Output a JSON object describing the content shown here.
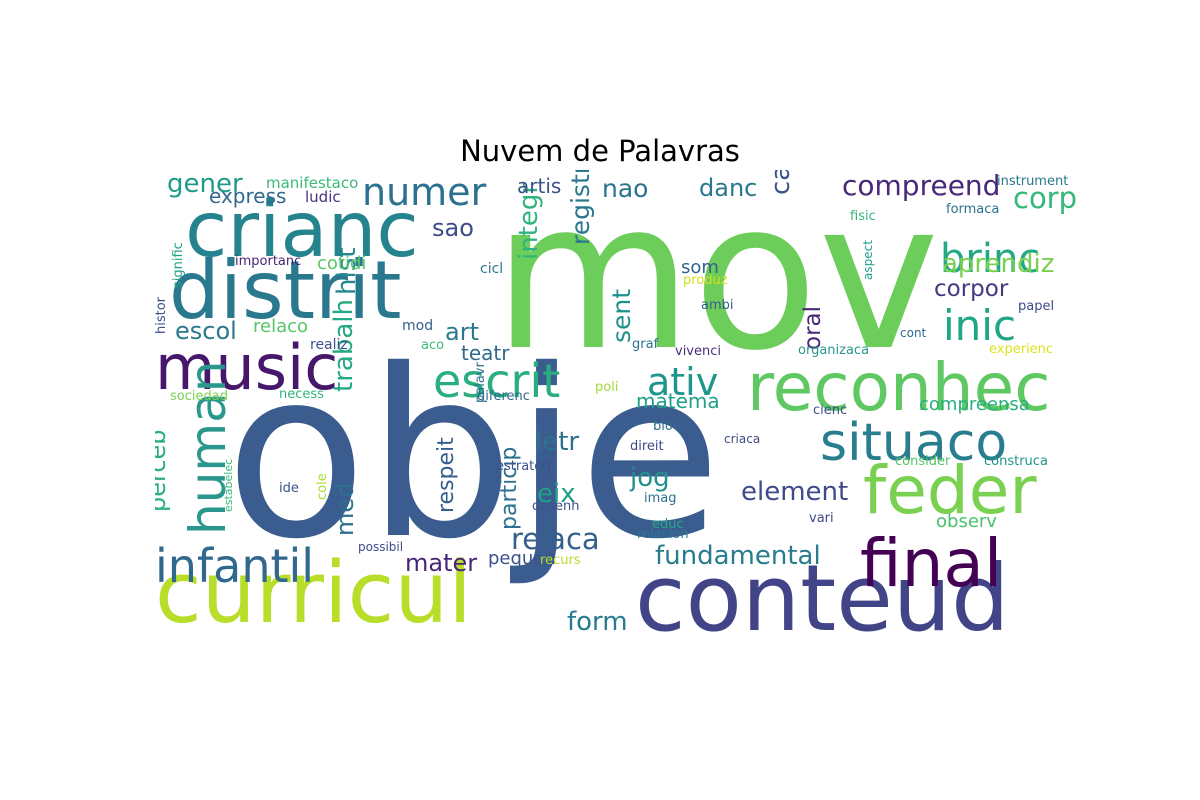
{
  "title": "Nuvem de Palavras",
  "words": [
    {
      "t": "obje",
      "c": "#3b5c8f"
    },
    {
      "t": "mov",
      "c": "#6ccd5a"
    },
    {
      "t": "conteud",
      "c": "#414487"
    },
    {
      "t": "curricul",
      "c": "#b8de29"
    },
    {
      "t": "distrit",
      "c": "#2a788e"
    },
    {
      "t": "crianc",
      "c": "#25838e"
    },
    {
      "t": "reconhec",
      "c": "#5ec962"
    },
    {
      "t": "feder",
      "c": "#7ad151"
    },
    {
      "t": "music",
      "c": "#46176b"
    },
    {
      "t": "final",
      "c": "#440154"
    },
    {
      "t": "situaco",
      "c": "#287d8e"
    },
    {
      "t": "infantil",
      "c": "#31688e"
    },
    {
      "t": "escrit",
      "c": "#29af7f"
    },
    {
      "t": "human",
      "c": "#2a968c"
    },
    {
      "t": "inic",
      "c": "#21a685"
    },
    {
      "t": "brinc",
      "c": "#22a884"
    },
    {
      "t": "numer",
      "c": "#2c728e"
    },
    {
      "t": "ativ",
      "c": "#1f968b"
    },
    {
      "t": "relaca",
      "c": "#355f8d"
    },
    {
      "t": "compreend",
      "c": "#482878"
    },
    {
      "t": "fundamental",
      "c": "#287c8e"
    },
    {
      "t": "element",
      "c": "#3e4a89"
    },
    {
      "t": "aprendiz",
      "c": "#7ad151"
    },
    {
      "t": "corpor",
      "c": "#453781"
    },
    {
      "t": "corp",
      "c": "#35b779"
    },
    {
      "t": "caracteris",
      "c": "#3b528b"
    },
    {
      "t": "integr",
      "c": "#2fb47c"
    },
    {
      "t": "hist",
      "c": "#23898e"
    },
    {
      "t": "trabalh",
      "c": "#23a983"
    },
    {
      "t": "med",
      "c": "#2d708e"
    },
    {
      "t": "perceb",
      "c": "#29af7f"
    },
    {
      "t": "escol",
      "c": "#2a788e"
    },
    {
      "t": "form",
      "c": "#287c8e"
    },
    {
      "t": "mater",
      "c": "#482677"
    },
    {
      "t": "letr",
      "c": "#2c728e"
    },
    {
      "t": "eix",
      "c": "#1fa187"
    },
    {
      "t": "jog",
      "c": "#21918c"
    },
    {
      "t": "sent",
      "c": "#21918c"
    },
    {
      "t": "registr",
      "c": "#2a788e"
    },
    {
      "t": "respeit",
      "c": "#355f8d"
    },
    {
      "t": "particip",
      "c": "#2c728e"
    },
    {
      "t": "oral",
      "c": "#482878"
    },
    {
      "t": "gener",
      "c": "#1e9c89"
    },
    {
      "t": "sao",
      "c": "#3e4c8a"
    },
    {
      "t": "nao",
      "c": "#2c728e"
    },
    {
      "t": "danc",
      "c": "#2a788e"
    },
    {
      "t": "art",
      "c": "#2a788e"
    },
    {
      "t": "teatr",
      "c": "#30698e"
    },
    {
      "t": "matema",
      "c": "#1fa088"
    },
    {
      "t": "artis",
      "c": "#3b528b"
    },
    {
      "t": "som",
      "c": "#33638d"
    },
    {
      "t": "pequen",
      "c": "#3b528b"
    },
    {
      "t": "express",
      "c": "#31688e"
    },
    {
      "t": "relaco",
      "c": "#56c667"
    },
    {
      "t": "cotidi",
      "c": "#56c667"
    },
    {
      "t": "observ",
      "c": "#4ac16d"
    },
    {
      "t": "compreensa",
      "c": "#29af7f"
    },
    {
      "t": "manifestaco",
      "c": "#3aba76"
    },
    {
      "t": "ludic",
      "c": "#46327e"
    },
    {
      "t": "histor",
      "c": "#3b528b"
    },
    {
      "t": "signific",
      "c": "#20a386"
    },
    {
      "t": "importanc",
      "c": "#482475"
    },
    {
      "t": "cicl",
      "c": "#2a788e"
    },
    {
      "t": "mod",
      "c": "#355f8d"
    },
    {
      "t": "realiz",
      "c": "#3b528b"
    },
    {
      "t": "aco",
      "c": "#3aba76"
    },
    {
      "t": "graf",
      "c": "#2c728e"
    },
    {
      "t": "vivenci",
      "c": "#472d7b"
    },
    {
      "t": "organizaca",
      "c": "#2a968c"
    },
    {
      "t": "experienc",
      "c": "#dde318"
    },
    {
      "t": "cont",
      "c": "#30698e"
    },
    {
      "t": "papel",
      "c": "#3e4a89"
    },
    {
      "t": "produz",
      "c": "#d0e11c"
    },
    {
      "t": "ambi",
      "c": "#355f8d"
    },
    {
      "t": "fisic",
      "c": "#35b779"
    },
    {
      "t": "aspect",
      "c": "#1fa088"
    },
    {
      "t": "formaca",
      "c": "#2c728e"
    },
    {
      "t": "instrument",
      "c": "#2a788e"
    },
    {
      "t": "sociedad",
      "c": "#7ad151"
    },
    {
      "t": "necess",
      "c": "#2fb47c"
    },
    {
      "t": "diferenc",
      "c": "#31688e"
    },
    {
      "t": "poli",
      "c": "#a2da37"
    },
    {
      "t": "cienc",
      "c": "#3b528b"
    },
    {
      "t": "consider",
      "c": "#56c667"
    },
    {
      "t": "construca",
      "c": "#1f958b"
    },
    {
      "t": "estrateg",
      "c": "#3b528b"
    },
    {
      "t": "criaca",
      "c": "#3e4a89"
    },
    {
      "t": "bloc",
      "c": "#2c728e"
    },
    {
      "t": "direit",
      "c": "#3e4a89"
    },
    {
      "t": "imag",
      "c": "#2c728e"
    },
    {
      "t": "desenh",
      "c": "#3b528b"
    },
    {
      "t": "palavr",
      "c": "#2d708e"
    },
    {
      "t": "educ",
      "c": "#22a884"
    },
    {
      "t": "relacion",
      "c": "#2a788e"
    },
    {
      "t": "vari",
      "c": "#3e4a89"
    },
    {
      "t": "recurs",
      "c": "#b5de2b"
    },
    {
      "t": "possibil",
      "c": "#3e4a89"
    },
    {
      "t": "ide",
      "c": "#3b528b"
    },
    {
      "t": "cole",
      "c": "#a5db36"
    },
    {
      "t": "estabelec",
      "c": "#3aba76"
    }
  ]
}
